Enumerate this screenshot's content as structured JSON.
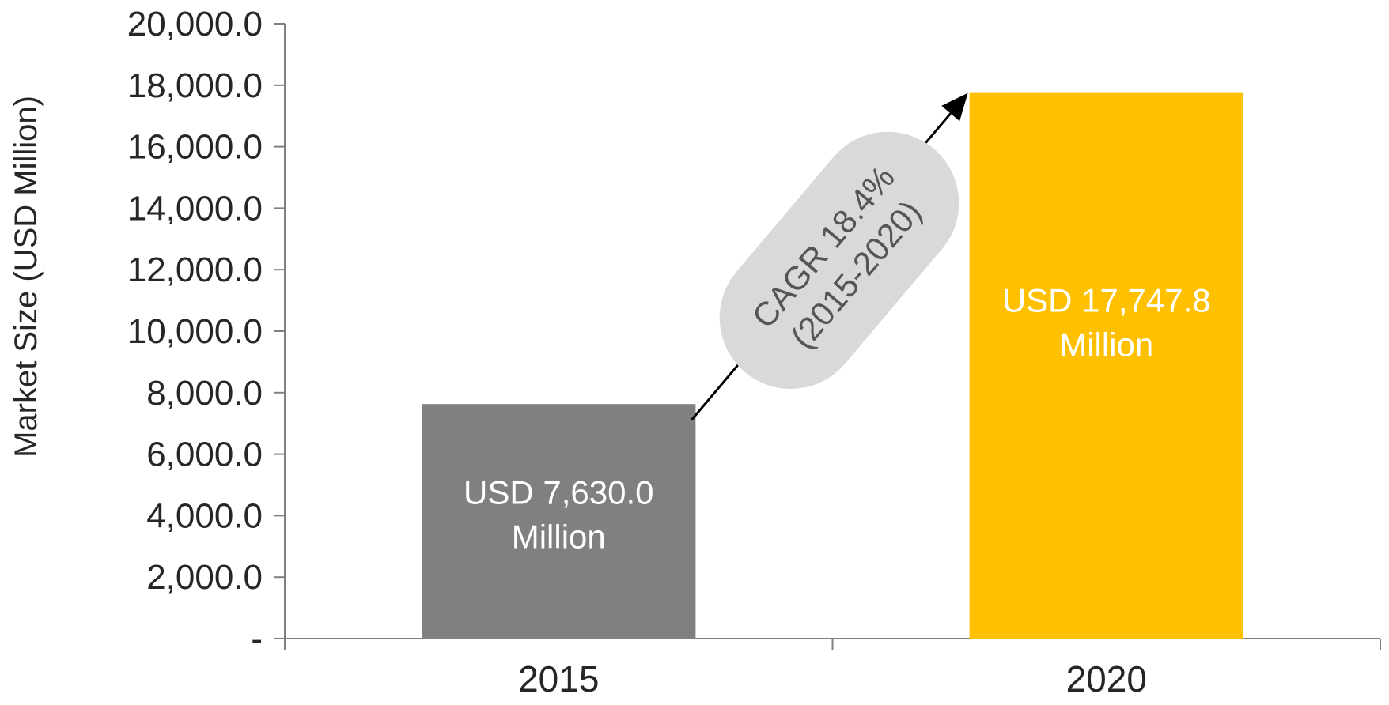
{
  "chart_data": {
    "type": "bar",
    "ylabel": "Market Size (USD Million)",
    "xlabel": "",
    "ylim": [
      0,
      20000
    ],
    "yticks": [
      {
        "value": 0,
        "label": "-"
      },
      {
        "value": 2000,
        "label": "2,000.0"
      },
      {
        "value": 4000,
        "label": "4,000.0"
      },
      {
        "value": 6000,
        "label": "6,000.0"
      },
      {
        "value": 8000,
        "label": "8,000.0"
      },
      {
        "value": 10000,
        "label": "10,000.0"
      },
      {
        "value": 12000,
        "label": "12,000.0"
      },
      {
        "value": 14000,
        "label": "14,000.0"
      },
      {
        "value": 16000,
        "label": "16,000.0"
      },
      {
        "value": 18000,
        "label": "18,000.0"
      },
      {
        "value": 20000,
        "label": "20,000.0"
      }
    ],
    "categories": [
      "2015",
      "2020"
    ],
    "values": [
      7630.0,
      17747.8
    ],
    "bar_colors": [
      "#808080",
      "#FFC000"
    ],
    "data_labels": [
      [
        "USD 7,630.0",
        "Million"
      ],
      [
        "USD 17,747.8",
        "Million"
      ]
    ],
    "annotation": {
      "lines": [
        "CAGR 18.4%",
        "(2015-2020)"
      ],
      "fill": "#D9D9D9",
      "arrow_color": "#000000"
    },
    "grid": false,
    "legend": "none"
  }
}
